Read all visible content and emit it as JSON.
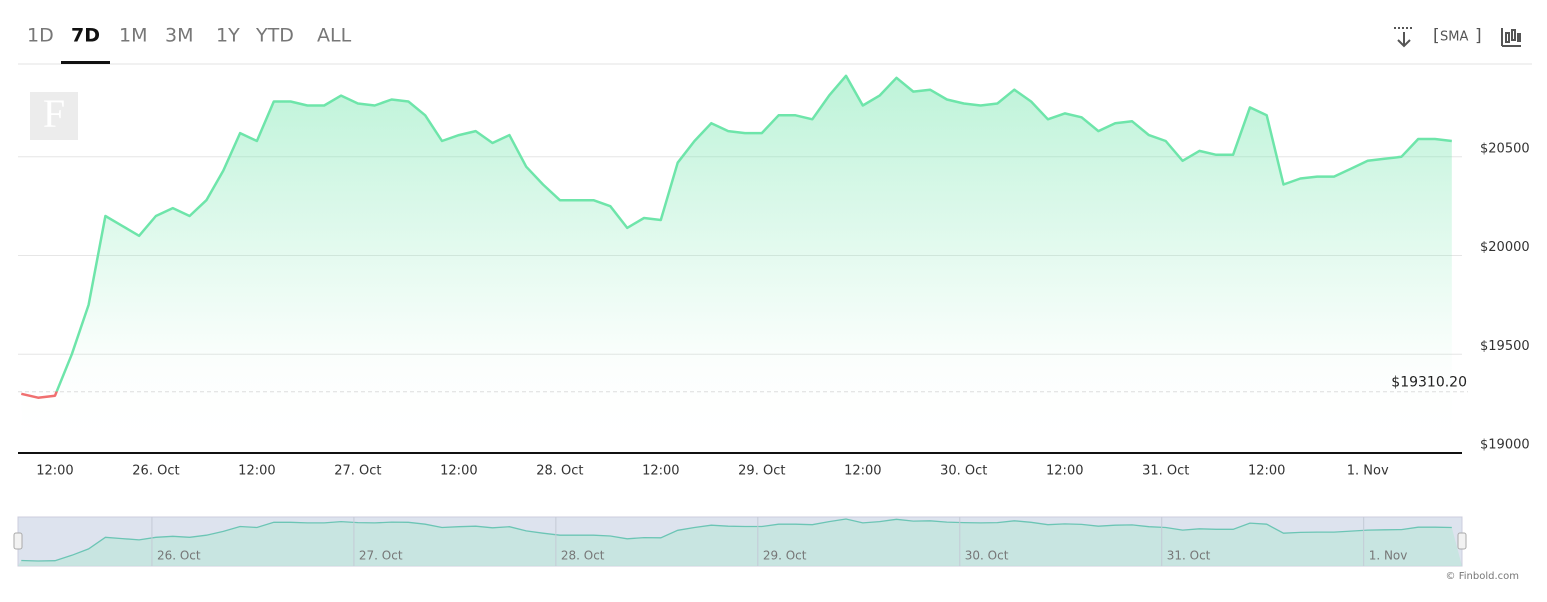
{
  "toolbar": {
    "ranges": [
      "1D",
      "7D",
      "1M",
      "3M",
      "1Y",
      "YTD",
      "ALL"
    ],
    "active": 1,
    "sma": "SMA"
  },
  "chart_data": {
    "type": "line",
    "watermark": "F",
    "categories": [
      null,
      null,
      "12:00",
      null,
      null,
      null,
      null,
      null,
      "26. Oct",
      null,
      null,
      null,
      null,
      null,
      "12:00",
      null,
      null,
      null,
      null,
      null,
      "27. Oct",
      null,
      null,
      null,
      null,
      null,
      "12:00",
      null,
      null,
      null,
      null,
      null,
      "28. Oct",
      null,
      null,
      null,
      null,
      null,
      "12:00",
      null,
      null,
      null,
      null,
      null,
      "29. Oct",
      null,
      null,
      null,
      null,
      null,
      "12:00",
      null,
      null,
      null,
      null,
      null,
      "30. Oct",
      null,
      null,
      null,
      null,
      null,
      "12:00",
      null,
      null,
      null,
      null,
      null,
      "31. Oct",
      null,
      null,
      null,
      null,
      null,
      "12:00",
      null,
      null,
      null,
      null,
      null,
      "1. Nov",
      null,
      null,
      null,
      null,
      null
    ],
    "series": [
      {
        "color": "#6ee5aa",
        "below_color": "#f07070",
        "values": [
          19300,
          19280,
          19290,
          19500,
          19750,
          20200,
          20150,
          20100,
          20200,
          20240,
          20200,
          20280,
          20430,
          20620,
          20580,
          20780,
          20780,
          20760,
          20760,
          20810,
          20770,
          20760,
          20790,
          20780,
          20710,
          20580,
          20610,
          20630,
          20570,
          20610,
          20450,
          20360,
          20280,
          20280,
          20280,
          20250,
          20140,
          20190,
          20180,
          20470,
          20580,
          20670,
          20630,
          20620,
          20620,
          20710,
          20710,
          20690,
          20810,
          20910,
          20760,
          20810,
          20900,
          20830,
          20840,
          20790,
          20770,
          20760,
          20770,
          20840,
          20780,
          20690,
          20720,
          20700,
          20630,
          20670,
          20680,
          20610,
          20580,
          20480,
          20530,
          20510,
          20510,
          20750,
          20710,
          20360,
          20390,
          20400,
          20400,
          20440,
          20480,
          20490,
          20500,
          20590,
          20590,
          20580
        ]
      }
    ],
    "reference": {
      "value": 19310.2,
      "label": "$19310.20"
    },
    "ylim": [
      19000,
      20970
    ],
    "yticks": [
      {
        "value": 19000,
        "label": "$19000"
      },
      {
        "value": 19500,
        "label": "$19500"
      },
      {
        "value": 20000,
        "label": "$20000"
      },
      {
        "value": 20500,
        "label": "$20500"
      }
    ],
    "grid": true,
    "credit": "© Finbold.com"
  }
}
